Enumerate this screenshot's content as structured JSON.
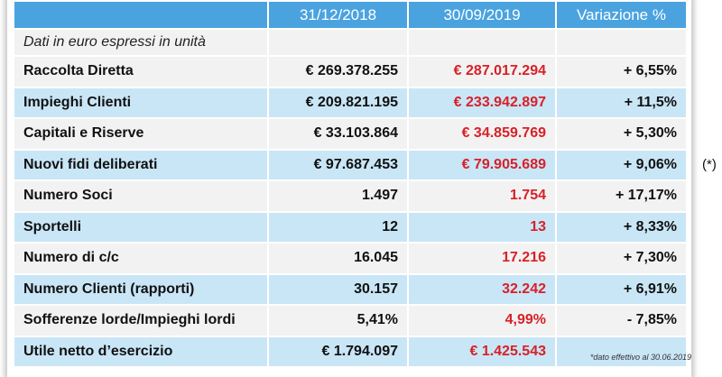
{
  "header": {
    "col0": "",
    "col1": "31/12/2018",
    "col2": "30/09/2019",
    "col3": "Variazione %"
  },
  "note": "Dati in euro espressi in unità",
  "rows": [
    {
      "label": "Raccolta Diretta",
      "v2018": "€ 269.378.255",
      "v2019": "€ 287.017.294",
      "var": "+ 6,55%"
    },
    {
      "label": "Impieghi Clienti",
      "v2018": "€ 209.821.195",
      "v2019": "€ 233.942.897",
      "var": "+ 11,5%"
    },
    {
      "label": "Capitali e Riserve",
      "v2018": "€ 33.103.864",
      "v2019": "€ 34.859.769",
      "var": "+ 5,30%"
    },
    {
      "label": "Nuovi fidi deliberati",
      "v2018": "€ 97.687.453",
      "v2019": "€ 79.905.689",
      "var": "+ 9,06%"
    },
    {
      "label": "Numero Soci",
      "v2018": "1.497",
      "v2019": "1.754",
      "var": "+ 17,17%"
    },
    {
      "label": "Sportelli",
      "v2018": "12",
      "v2019": "13",
      "var": "+ 8,33%"
    },
    {
      "label": "Numero di c/c",
      "v2018": "16.045",
      "v2019": "17.216",
      "var": "+ 7,30%"
    },
    {
      "label": "Numero Clienti (rapporti)",
      "v2018": "30.157",
      "v2019": "32.242",
      "var": "+ 6,91%"
    },
    {
      "label": "Sofferenze lorde/Impieghi lordi",
      "v2018": "5,41%",
      "v2019": "4,99%",
      "var": "- 7,85%"
    },
    {
      "label": "Utile netto d’esercizio",
      "v2018": "€ 1.794.097",
      "v2019": "€ 1.425.543",
      "var": ""
    }
  ],
  "side_marker": "(*)",
  "footnote": "*dato effettivo al 30.06.2019",
  "colors": {
    "header_bg": "#4aa3df",
    "row_light": "#f2f2f2",
    "row_blue": "#c9e6f7",
    "value_2019": "#d92027"
  }
}
